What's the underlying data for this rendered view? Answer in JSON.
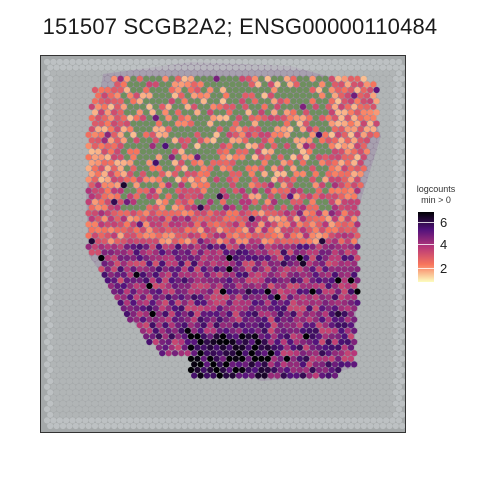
{
  "title": "151507 SCGB2A2; ENSG00000110484",
  "chart_data": {
    "type": "heatmap",
    "title": "151507 SCGB2A2; ENSG00000110484",
    "legend_title_line1": "logcounts",
    "legend_title_line2": "min > 0",
    "legend_ticks": [
      2,
      4,
      6
    ],
    "legend_placement": "right",
    "color_range": [
      0.5,
      7
    ],
    "colors": {
      "panel_background": "#a5a9aa",
      "empty_spot": "#c8cccd",
      "tissue_green": "#6e8f5e",
      "tissue_purple": "#8a6f94",
      "scale_low": "#fcfdbf",
      "scale_mid_low": "#f8765c",
      "scale_mid": "#b73779",
      "scale_mid_high": "#51127c",
      "scale_high": "#000004"
    },
    "regions": [
      {
        "name": "upper-green-zone",
        "dominant": "tissue_green",
        "value_range": [
          0.5,
          3
        ]
      },
      {
        "name": "middle-mixed-zone",
        "dominant": "scale_mid_low",
        "value_range": [
          1,
          4
        ]
      },
      {
        "name": "lower-purple-zone",
        "dominant": "scale_mid",
        "value_range": [
          2.5,
          7
        ]
      }
    ],
    "grid": false
  }
}
